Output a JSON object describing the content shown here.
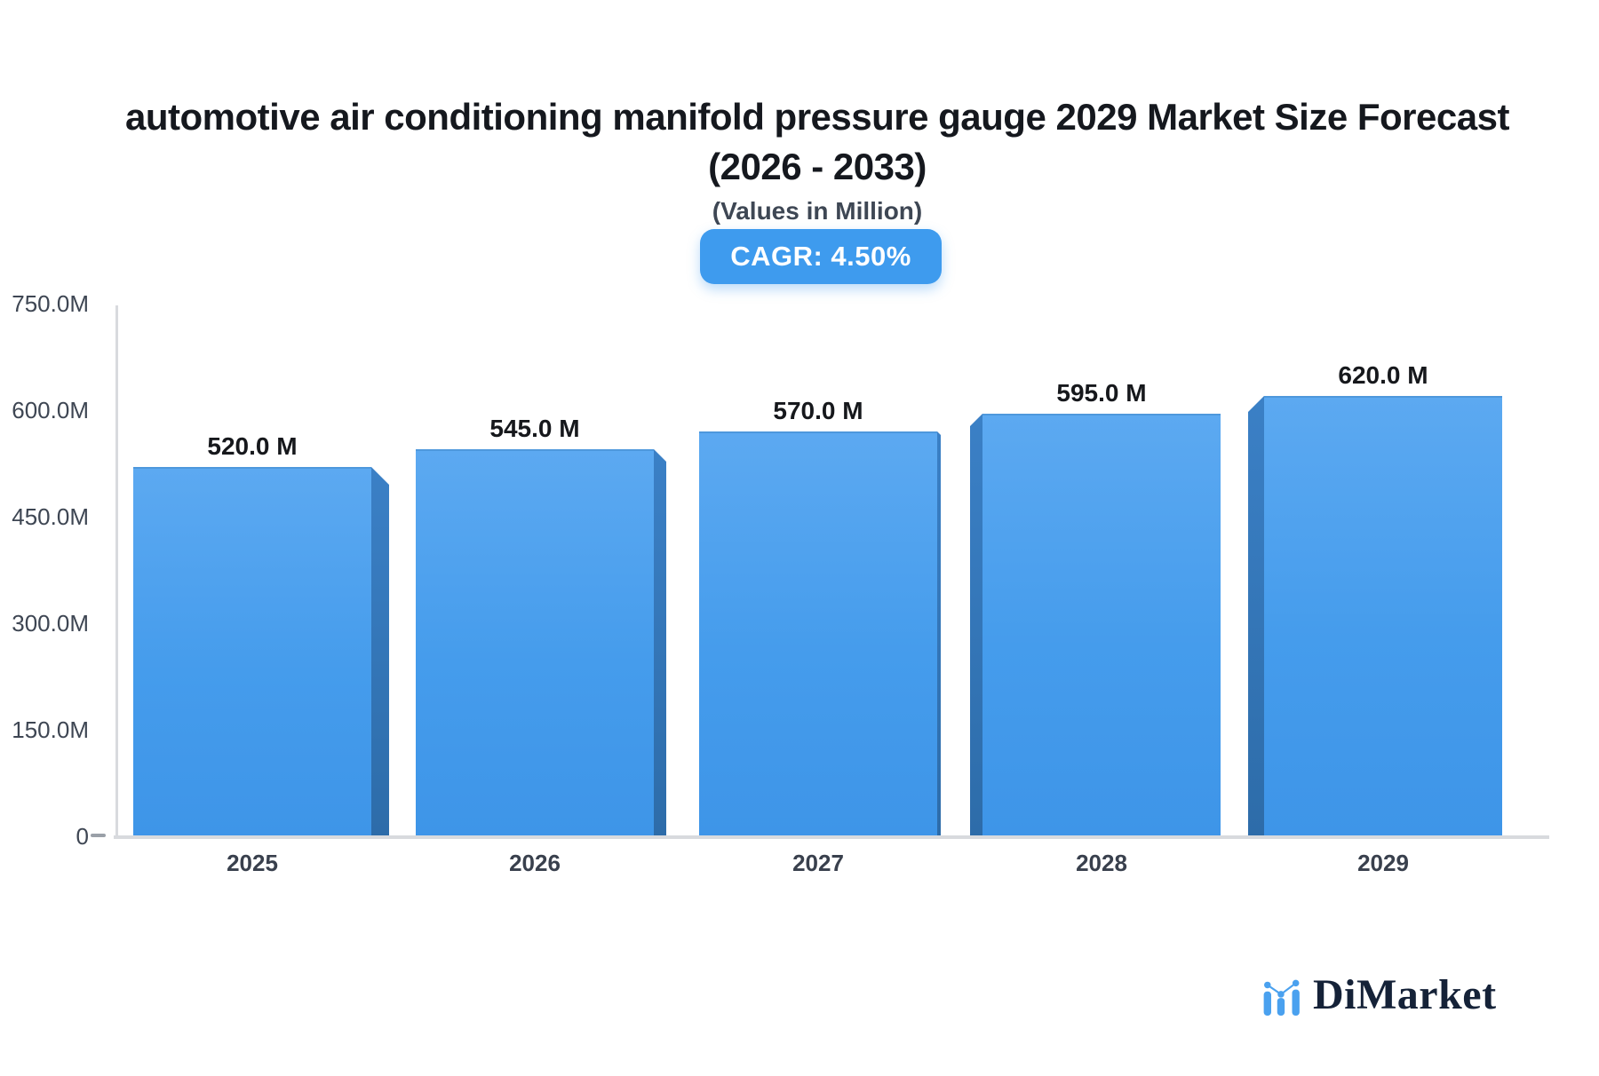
{
  "header": {
    "title_line1": "automotive air conditioning manifold pressure gauge 2029 Market Size Forecast",
    "title_line2": "(2026 - 2033)",
    "subtitle": "(Values in Million)",
    "cagr_label": "CAGR: 4.50%"
  },
  "chart_data": {
    "type": "bar",
    "title": "automotive air conditioning manifold pressure gauge 2029 Market Size Forecast (2026 - 2033)",
    "subtitle": "(Values in Million)",
    "unit": "Million",
    "cagr_percent": 4.5,
    "categories": [
      "2025",
      "2026",
      "2027",
      "2028",
      "2029"
    ],
    "values": [
      520.0,
      545.0,
      570.0,
      595.0,
      620.0
    ],
    "value_labels": [
      "520.0 M",
      "545.0 M",
      "570.0 M",
      "595.0 M",
      "620.0 M"
    ],
    "ylim": [
      0,
      750
    ],
    "ytick_values": [
      0,
      150,
      300,
      450,
      600,
      750
    ],
    "ytick_labels": [
      "0",
      "150.0M",
      "300.0M",
      "450.0M",
      "600.0M",
      "750.0M"
    ],
    "grid": false,
    "legend": false,
    "bar_style": "3d-extruded"
  },
  "footer": {
    "logo_text": "DiMarket"
  },
  "colors": {
    "background": "#FFFFFF",
    "badge_bg": "#3E9BEE",
    "bar_face_top": "#5CA9F1",
    "bar_face_bottom": "#3E95E8",
    "bar_side_top": "#3B80C6",
    "bar_side_bottom": "#2D6CA9",
    "axis_line": "#D8DADE",
    "tick_dash": "#9AA0A8",
    "title_text": "#15181E",
    "subtitle_text": "#3E4754",
    "value_label_text": "#16181C",
    "axis_label_text": "#3E4653",
    "year_label_text": "#39404D",
    "logo_text": "#152238",
    "logo_blue": "#4AA1EF"
  }
}
